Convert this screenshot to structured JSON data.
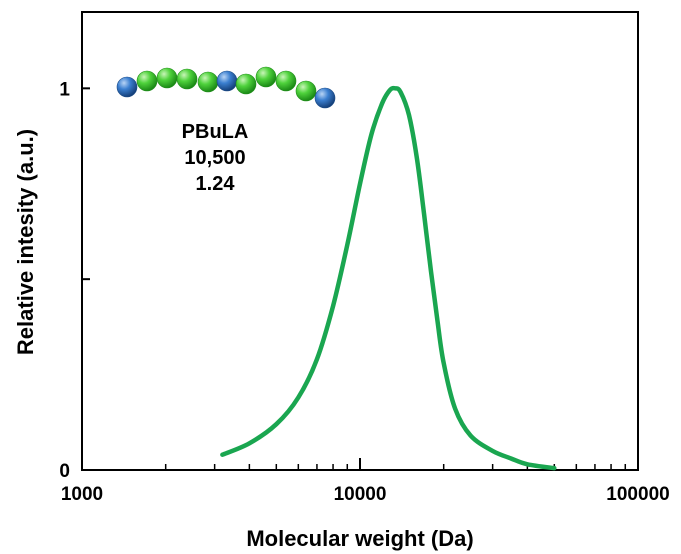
{
  "chart_data": {
    "type": "line",
    "title": "",
    "xlabel": "Molecular weight (Da)",
    "ylabel": "Relative intesity (a.u.)",
    "x_scale": "log",
    "xlim": [
      1000,
      100000
    ],
    "ylim": [
      0,
      1.2
    ],
    "x_ticks": [
      1000,
      10000,
      100000
    ],
    "x_tick_labels": [
      "1000",
      "10000",
      "100000"
    ],
    "y_ticks": [
      0,
      0.5,
      1
    ],
    "y_tick_labels": [
      "0",
      "",
      "1"
    ],
    "grid": false,
    "legend": "none",
    "series": [
      {
        "color": "#1aa650",
        "x": [
          3200,
          4000,
          5000,
          6000,
          7000,
          8000,
          9000,
          10000,
          11000,
          12000,
          12800,
          13400,
          14000,
          15000,
          16000,
          17000,
          18000,
          19000,
          20000,
          22000,
          25000,
          30000,
          35000,
          40000,
          50000
        ],
        "y": [
          0.04,
          0.07,
          0.12,
          0.19,
          0.29,
          0.43,
          0.59,
          0.75,
          0.88,
          0.96,
          0.995,
          1.0,
          0.99,
          0.93,
          0.82,
          0.67,
          0.52,
          0.39,
          0.28,
          0.16,
          0.09,
          0.05,
          0.03,
          0.015,
          0.005
        ]
      }
    ],
    "annotations": {
      "name": "PBuLA",
      "mn": "10,500",
      "dispersity": "1.24"
    },
    "molecule_beads": {
      "colors": {
        "end": "#2f6fc2",
        "middle": "#3dc62e"
      },
      "sequence": [
        "end",
        "middle",
        "middle",
        "middle",
        "middle",
        "end",
        "middle",
        "middle",
        "middle",
        "middle",
        "end"
      ]
    }
  }
}
